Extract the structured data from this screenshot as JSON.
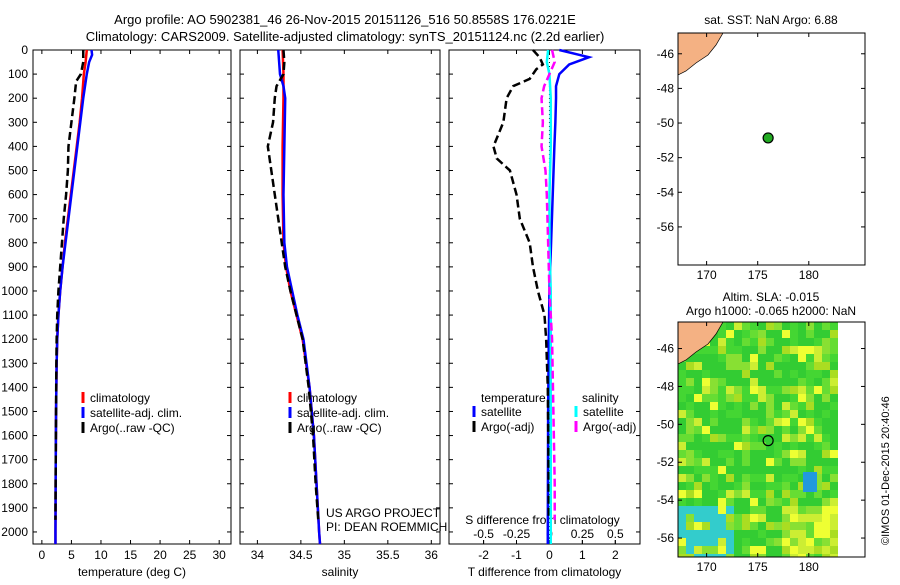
{
  "title_line1": "Argo profile: AO 5902381_46 26-Nov-2015 20151126_516 50.8558S 176.0221E",
  "title_line2": "Climatology: CARS2009. Satellite-adjusted climatology: synTS_20151124.nc (2.2d earlier)",
  "copyright": "©IMOS 01-Dec-2015 20:40:46",
  "colors": {
    "clim": "#ff0000",
    "sat": "#0000ff",
    "argo": "#000000",
    "sal_sat": "#00ffff",
    "sal_argo": "#ff00ff",
    "land": "#f4b183",
    "dot": "#22aa22"
  },
  "chart_data": [
    {
      "type": "line",
      "name": "temperature",
      "xlabel": "temperature (deg C)",
      "ylabel": "",
      "xlim": [
        -1.5,
        32
      ],
      "ylim": [
        2050,
        0
      ],
      "xticks": [
        "0",
        "5",
        "10",
        "15",
        "20",
        "25",
        "30"
      ],
      "xtick_values": [
        0,
        5,
        10,
        15,
        20,
        25,
        30
      ],
      "yticks": [
        "0",
        "100",
        "200",
        "300",
        "400",
        "500",
        "600",
        "700",
        "800",
        "900",
        "1000",
        "1100",
        "1200",
        "1300",
        "1400",
        "1500",
        "1600",
        "1700",
        "1800",
        "1900",
        "2000"
      ],
      "legend": {
        "placement": "center",
        "entries": [
          "climatology",
          "satellite-adj. clim.",
          "Argo(..raw -QC)"
        ]
      },
      "series": [
        {
          "name": "climatology",
          "color": "#ff0000",
          "style": "solid",
          "depth": [
            0,
            50,
            100,
            200,
            300,
            400,
            500,
            600,
            700,
            800,
            900,
            1000,
            1100,
            1200,
            1300,
            1500,
            1700,
            2000,
            2050
          ],
          "values": [
            7.6,
            7.4,
            7.1,
            6.8,
            6.4,
            5.9,
            5.4,
            4.9,
            4.4,
            3.9,
            3.5,
            3.1,
            2.8,
            2.6,
            2.5,
            2.4,
            2.35,
            2.3,
            2.3
          ]
        },
        {
          "name": "satellite-adj. clim.",
          "color": "#0000ff",
          "style": "solid",
          "depth": [
            0,
            20,
            50,
            100,
            200,
            300,
            400,
            500,
            600,
            700,
            800,
            900,
            1000,
            1100,
            1200,
            1300,
            1500,
            1700,
            2000,
            2050
          ],
          "values": [
            8.4,
            8.5,
            8.0,
            7.6,
            7.0,
            6.5,
            6.0,
            5.5,
            5.0,
            4.5,
            4.0,
            3.5,
            3.1,
            2.8,
            2.6,
            2.5,
            2.4,
            2.35,
            2.3,
            2.3
          ]
        },
        {
          "name": "Argo(..raw -QC)",
          "color": "#000000",
          "style": "dashed",
          "depth": [
            0,
            50,
            100,
            130,
            200,
            300,
            400,
            500,
            600,
            700,
            800,
            900,
            1000,
            1100,
            1200,
            1300,
            1500,
            1700,
            1950
          ],
          "values": [
            7.0,
            7.0,
            6.6,
            5.8,
            5.5,
            5.0,
            4.5,
            4.4,
            4.1,
            3.7,
            3.4,
            3.1,
            2.8,
            2.6,
            2.5,
            2.45,
            2.4,
            2.35,
            2.3
          ]
        }
      ]
    },
    {
      "type": "line",
      "name": "salinity",
      "xlabel": "salinity",
      "xlim": [
        33.8,
        36.1
      ],
      "ylim": [
        2050,
        0
      ],
      "xticks": [
        "34",
        "34.5",
        "35",
        "35.5",
        "36"
      ],
      "xtick_values": [
        34,
        34.5,
        35,
        35.5,
        36
      ],
      "legend": {
        "placement": "center",
        "entries": [
          "climatology",
          "satellite-adj. clim.",
          "Argo(..raw -QC)"
        ]
      },
      "annotation": [
        "US ARGO PROJECT",
        "PI: DEAN ROEMMICH"
      ],
      "series": [
        {
          "name": "climatology",
          "color": "#ff0000",
          "style": "solid",
          "depth": [
            0,
            100,
            200,
            400,
            600,
            800,
            900,
            1000,
            1100,
            1200,
            1400,
            1600,
            1800,
            2000,
            2050
          ],
          "values": [
            34.29,
            34.3,
            34.3,
            34.29,
            34.29,
            34.3,
            34.33,
            34.38,
            34.45,
            34.52,
            34.6,
            34.65,
            34.68,
            34.71,
            34.72
          ]
        },
        {
          "name": "satellite-adj. clim.",
          "color": "#0000ff",
          "style": "solid",
          "depth": [
            0,
            50,
            100,
            150,
            200,
            400,
            600,
            800,
            900,
            1000,
            1100,
            1200,
            1400,
            1600,
            1800,
            2000,
            2050
          ],
          "values": [
            34.24,
            34.25,
            34.26,
            34.3,
            34.32,
            34.31,
            34.3,
            34.31,
            34.34,
            34.4,
            34.46,
            34.53,
            34.6,
            34.65,
            34.68,
            34.71,
            34.72
          ]
        },
        {
          "name": "Argo(..raw -QC)",
          "color": "#000000",
          "style": "dashed",
          "depth": [
            0,
            50,
            100,
            150,
            200,
            300,
            400,
            500,
            600,
            700,
            800,
            900,
            1000,
            1100,
            1200,
            1400,
            1600,
            1800,
            1950
          ],
          "values": [
            34.3,
            34.31,
            34.3,
            34.22,
            34.2,
            34.18,
            34.12,
            34.16,
            34.2,
            34.24,
            34.28,
            34.32,
            34.38,
            34.45,
            34.52,
            34.59,
            34.64,
            34.67,
            34.7
          ]
        }
      ]
    },
    {
      "type": "line",
      "name": "difference",
      "xlabel": "T difference from climatology",
      "x2label": "S difference from climatology",
      "xlim": [
        -3.05,
        2.75
      ],
      "ylim": [
        2050,
        0
      ],
      "xticks": [
        "-2",
        "-1",
        "0",
        "1",
        "2"
      ],
      "xtick_values": [
        -2,
        -1,
        0,
        1,
        2
      ],
      "x2ticks": [
        "-0.5",
        "-0.25",
        "0",
        "0.25",
        "0.5"
      ],
      "x2tick_values": [
        -0.5,
        -0.25,
        0,
        0.25,
        0.5
      ],
      "legend": {
        "placement": "center",
        "temperature_title": "temperature",
        "salinity_title": "salinity",
        "entries": [
          "satellite",
          "Argo(-adj)",
          "satellite",
          "Argo(-adj)"
        ]
      },
      "series": [
        {
          "name": "T satellite",
          "axis": "T",
          "color": "#0000ff",
          "style": "solid",
          "depth": [
            0,
            20,
            30,
            60,
            100,
            150,
            200,
            300,
            400,
            600,
            800,
            1000,
            1200,
            1500,
            2000,
            2050
          ],
          "values": [
            0.3,
            0.9,
            1.2,
            0.6,
            0.3,
            0.2,
            0.2,
            0.18,
            0.15,
            0.1,
            0.05,
            0,
            -0.02,
            -0.04,
            -0.05,
            -0.05
          ]
        },
        {
          "name": "T Argo(-adj)",
          "axis": "T",
          "color": "#000000",
          "style": "dashed",
          "depth": [
            0,
            30,
            60,
            80,
            120,
            150,
            200,
            300,
            400,
            450,
            500,
            600,
            700,
            800,
            900,
            1000,
            1100,
            1200,
            1400,
            1700,
            1950
          ],
          "values": [
            -0.5,
            -0.3,
            -0.2,
            -0.4,
            -0.6,
            -1.1,
            -1.3,
            -1.4,
            -1.7,
            -1.6,
            -1.2,
            -1.0,
            -0.9,
            -0.6,
            -0.5,
            -0.35,
            -0.15,
            -0.1,
            -0.05,
            -0.03,
            -0.02
          ]
        },
        {
          "name": "S satellite",
          "axis": "S",
          "color": "#00ffff",
          "style": "solid",
          "depth": [
            0,
            50,
            100,
            200,
            400,
            600,
            800,
            1000,
            1200,
            1500,
            2000,
            2050
          ],
          "values": [
            -0.01,
            -0.02,
            0.0,
            0.01,
            0.01,
            0.0,
            0.0,
            0.01,
            0.01,
            0.01,
            0.01,
            0.01
          ]
        },
        {
          "name": "S Argo(-adj)",
          "axis": "S",
          "color": "#ff00ff",
          "style": "dashed",
          "depth": [
            0,
            50,
            100,
            150,
            200,
            300,
            400,
            500,
            600,
            800,
            1000,
            1200,
            1500,
            1800,
            1950
          ],
          "values": [
            0.02,
            0.04,
            0.0,
            -0.04,
            -0.06,
            -0.05,
            -0.06,
            -0.03,
            -0.02,
            -0.01,
            0.0,
            0.02,
            0.03,
            0.04,
            0.04
          ]
        }
      ]
    },
    {
      "type": "scatter",
      "name": "sst-map",
      "title": "sat. SST: NaN Argo: 6.88",
      "xlim": [
        167.2,
        185.5
      ],
      "ylim": [
        -58.2,
        -44.8
      ],
      "xticks": [
        "170",
        "175",
        "180"
      ],
      "xtick_values": [
        170,
        175,
        180
      ],
      "yticks": [
        "-46",
        "-48",
        "-50",
        "-52",
        "-54",
        "-56"
      ],
      "ytick_values": [
        -46,
        -48,
        -50,
        -52,
        -54,
        -56
      ],
      "point": {
        "lon": 176.02,
        "lat": -50.86
      }
    },
    {
      "type": "heatmap",
      "name": "sla-map",
      "title_line1": "Altim. SLA: -0.015",
      "title_line2": "Argo h1000: -0.065 h2000: NaN",
      "xlim": [
        167.2,
        185.5
      ],
      "ylim": [
        -57.0,
        -44.6
      ],
      "xticks": [
        "170",
        "175",
        "180"
      ],
      "xtick_values": [
        170,
        175,
        180
      ],
      "yticks": [
        "-46",
        "-48",
        "-50",
        "-52",
        "-54",
        "-56"
      ],
      "ytick_values": [
        -46,
        -48,
        -50,
        -52,
        -54,
        -56
      ],
      "data_lon_max": 180,
      "point": {
        "lon": 176.02,
        "lat": -50.86
      }
    }
  ]
}
